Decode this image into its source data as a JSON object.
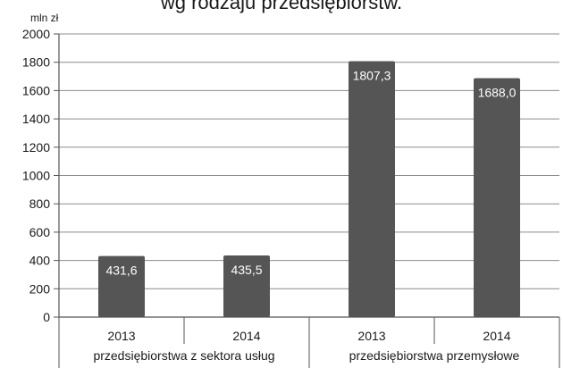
{
  "chart_data": {
    "type": "bar",
    "title": "wg rodzaju przedsiębiorstw.",
    "ylabel": "mln zł",
    "ylim": [
      0,
      2000
    ],
    "yticks": [
      0,
      200,
      400,
      600,
      800,
      1000,
      1200,
      1400,
      1600,
      1800,
      2000
    ],
    "grid": true,
    "legend": "none",
    "groups": [
      {
        "label": "przedsiębiorstwa z sektora usług",
        "bars": [
          {
            "category": "2013",
            "value": 431.6,
            "label": "431,6"
          },
          {
            "category": "2014",
            "value": 435.5,
            "label": "435,5"
          }
        ]
      },
      {
        "label": "przedsiębiorstwa przemysłowe",
        "bars": [
          {
            "category": "2013",
            "value": 1807.3,
            "label": "1807,3"
          },
          {
            "category": "2014",
            "value": 1688.0,
            "label": "1688,0"
          }
        ]
      }
    ],
    "colors": {
      "bar": "#555555",
      "grid": "#8c8c8c",
      "axis": "#555555",
      "label": "#ffffff"
    }
  }
}
